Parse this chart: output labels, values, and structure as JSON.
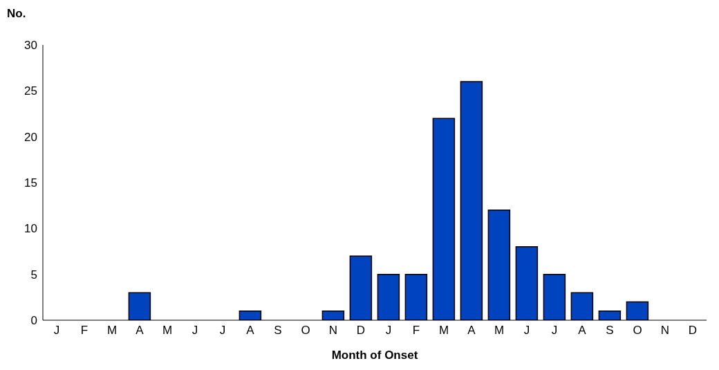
{
  "chart_data": {
    "type": "bar",
    "ylabel": "No.",
    "xlabel": "Month of Onset",
    "categories": [
      "J",
      "F",
      "M",
      "A",
      "M",
      "J",
      "J",
      "A",
      "S",
      "O",
      "N",
      "D",
      "J",
      "F",
      "M",
      "A",
      "M",
      "J",
      "J",
      "A",
      "S",
      "O",
      "N",
      "D"
    ],
    "values": [
      0,
      0,
      0,
      3,
      0,
      0,
      0,
      1,
      0,
      0,
      1,
      7,
      5,
      5,
      22,
      26,
      12,
      8,
      5,
      3,
      1,
      2,
      0,
      0
    ],
    "color": "#0043bf",
    "ylim": [
      0,
      30
    ],
    "yticks": [
      0,
      5,
      10,
      15,
      20,
      25,
      30
    ]
  }
}
